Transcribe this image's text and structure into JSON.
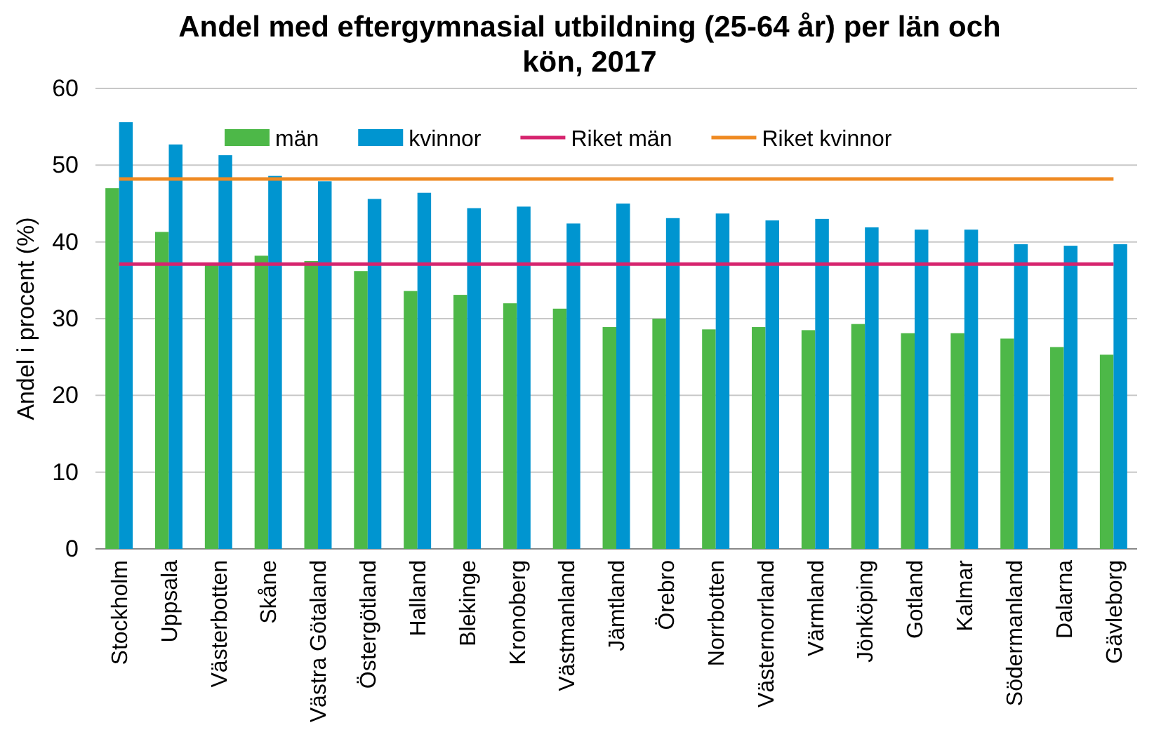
{
  "chart_data": {
    "type": "bar",
    "title": "Andel med eftergymnasial utbildning (25-64 år) per län och kön, 2017",
    "ylabel": "Andel i procent (%)",
    "categories": [
      "Stockholm",
      "Uppsala",
      "Västerbotten",
      "Skåne",
      "Västra Götaland",
      "Östergötland",
      "Halland",
      "Blekinge",
      "Kronoberg",
      "Västmanland",
      "Jämtland",
      "Örebro",
      "Norrbotten",
      "Västernorrland",
      "Värmland",
      "Jönköping",
      "Gotland",
      "Kalmar",
      "Södermanland",
      "Dalarna",
      "Gävleborg"
    ],
    "series": [
      {
        "name": "män",
        "color": "#4db848",
        "values": [
          47.0,
          41.3,
          37.0,
          38.2,
          37.5,
          36.2,
          33.6,
          33.1,
          32.0,
          31.3,
          28.9,
          30.0,
          28.6,
          28.9,
          28.5,
          29.3,
          28.1,
          28.1,
          27.4,
          26.3,
          25.3
        ]
      },
      {
        "name": "kvinnor",
        "color": "#0095d0",
        "values": [
          55.6,
          52.7,
          51.3,
          48.6,
          47.9,
          45.6,
          46.4,
          44.4,
          44.6,
          42.4,
          45.0,
          43.1,
          43.7,
          42.8,
          43.0,
          41.9,
          41.6,
          41.6,
          39.7,
          39.5,
          39.7
        ]
      }
    ],
    "ref_lines": [
      {
        "axis": "y",
        "value": 37.1,
        "label": "Riket män",
        "color": "#d6246e"
      },
      {
        "axis": "y",
        "value": 48.2,
        "label": "Riket kvinnor",
        "color": "#ef8a22"
      }
    ],
    "ylim": [
      0,
      60
    ],
    "yticks": [
      0,
      10,
      20,
      30,
      40,
      50,
      60
    ],
    "grid": "y",
    "legend": "top"
  }
}
